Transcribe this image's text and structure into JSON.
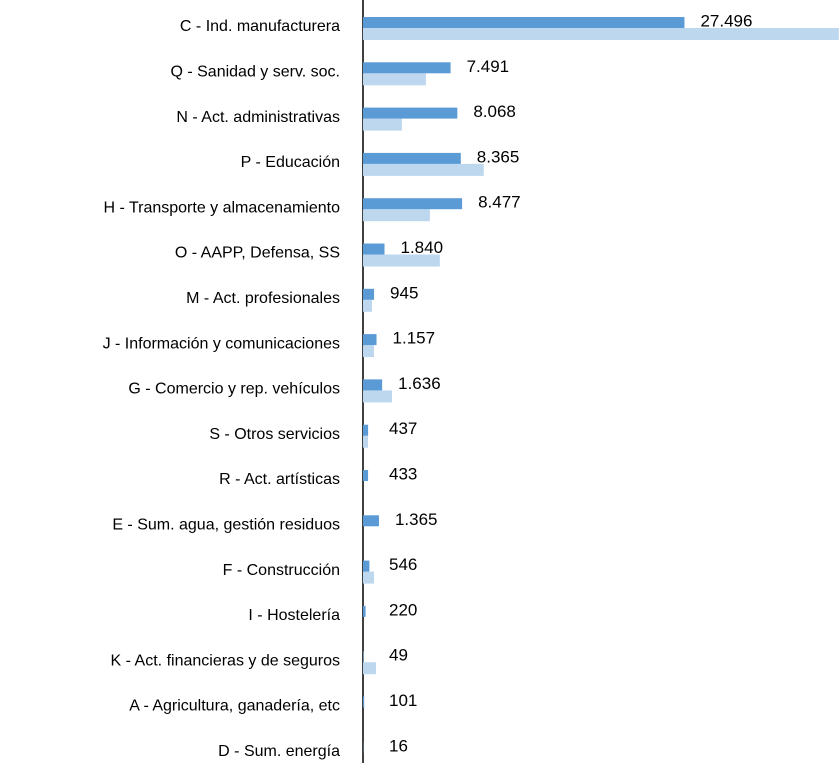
{
  "chart_data": {
    "type": "bar",
    "orientation": "horizontal",
    "categories": [
      "C - Ind. manufacturera",
      "Q - Sanidad y serv. soc.",
      "N - Act. administrativas",
      "P - Educación",
      "H - Transporte y almacenamiento",
      "O - AAPP, Defensa, SS",
      "M - Act. profesionales",
      "J - Información y comunicaciones",
      "G - Comercio y rep. vehículos",
      "S - Otros servicios",
      "R - Act. artísticas",
      "E - Sum. agua, gestión residuos",
      "F - Construcción",
      "I - Hostelería",
      "K - Act. financieras y de seguros",
      "A - Agricultura, ganadería, etc",
      "D - Sum. energía"
    ],
    "series": [
      {
        "color": "#5b9bd5",
        "values": [
          27496,
          7491,
          8068,
          8365,
          8477,
          1840,
          945,
          1157,
          1636,
          437,
          433,
          1365,
          546,
          220,
          49,
          101,
          16
        ],
        "value_labels": [
          "27.496",
          "7.491",
          "8.068",
          "8.365",
          "8.477",
          "1.840",
          "945",
          "1.157",
          "1.636",
          "437",
          "433",
          "1.365",
          "546",
          "220",
          "49",
          "101",
          "16"
        ]
      },
      {
        "color": "#bdd7ee",
        "values": [
          40700,
          5380,
          3330,
          10330,
          5720,
          6575,
          770,
          940,
          2480,
          430,
          0,
          0,
          940,
          0,
          1110,
          0,
          0
        ]
      }
    ],
    "xlim": [
      0,
      40800
    ]
  }
}
